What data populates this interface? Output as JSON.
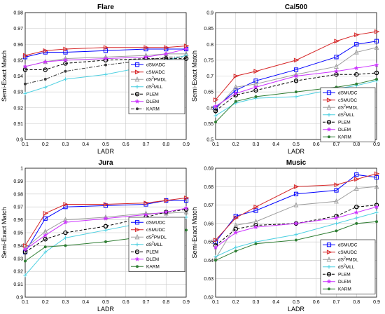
{
  "chart_data": [
    {
      "type": "line",
      "title": "Flare",
      "xlabel": "LADR",
      "ylabel": "Semi-Exact Match",
      "xlim": [
        0.1,
        0.9
      ],
      "ylim": [
        0.9,
        0.98
      ],
      "xticks": [
        "0.1",
        "0.2",
        "0.3",
        "0.4",
        "0.5",
        "0.6",
        "0.7",
        "0.8",
        "0.9"
      ],
      "yticks": [
        "0.9",
        "0.91",
        "0.92",
        "0.93",
        "0.94",
        "0.95",
        "0.96",
        "0.97",
        "0.98"
      ],
      "grid": true,
      "legend": "center-right",
      "x": [
        0.1,
        0.2,
        0.3,
        0.5,
        0.7,
        0.8,
        0.9
      ],
      "series": [
        {
          "name": "dSMADC",
          "color": "#0000ff",
          "marker": "square",
          "dash": "solid",
          "values": [
            0.952,
            0.955,
            0.955,
            0.956,
            0.957,
            0.957,
            0.957
          ]
        },
        {
          "name": "cSMADC",
          "color": "#d62728",
          "marker": "triangle-right",
          "dash": "solid",
          "values": [
            0.953,
            0.956,
            0.957,
            0.958,
            0.958,
            0.958,
            0.959
          ]
        },
        {
          "name": "dS²PMDL",
          "color": "#9e9e9e",
          "marker": "triangle-up",
          "dash": "solid",
          "values": [
            0.946,
            0.949,
            0.951,
            0.952,
            0.953,
            0.954,
            0.954
          ]
        },
        {
          "name": "dS²MLL",
          "color": "#4dd0e1",
          "marker": "plus",
          "dash": "solid",
          "values": [
            0.929,
            0.933,
            0.938,
            0.941,
            0.946,
            0.95,
            0.953
          ]
        },
        {
          "name": "PLEM",
          "color": "#000000",
          "marker": "circle",
          "dash": "dashed",
          "values": [
            0.944,
            0.944,
            0.948,
            0.95,
            0.951,
            0.951,
            0.951
          ]
        },
        {
          "name": "DLEM",
          "color": "#cc33ff",
          "marker": "star",
          "dash": "solid",
          "values": [
            0.946,
            0.949,
            0.95,
            0.951,
            0.952,
            0.954,
            0.957
          ]
        },
        {
          "name": "KARM",
          "color": "#3a3a3a",
          "marker": "dot",
          "dash": "dashdot",
          "values": [
            0.935,
            0.938,
            0.943,
            0.947,
            0.95,
            0.952,
            0.952
          ]
        }
      ]
    },
    {
      "type": "line",
      "title": "Cal500",
      "xlabel": "LADR",
      "ylabel": "Semi-Exact Match",
      "xlim": [
        0.1,
        0.9
      ],
      "ylim": [
        0.5,
        0.9
      ],
      "xticks": [
        "0.1",
        "0.2",
        "0.3",
        "0.4",
        "0.5",
        "0.6",
        "0.7",
        "0.8",
        "0.9"
      ],
      "yticks": [
        "0.5",
        "0.55",
        "0.6",
        "0.65",
        "0.7",
        "0.75",
        "0.8",
        "0.85",
        "0.9"
      ],
      "grid": true,
      "legend": "bottom-right",
      "x": [
        0.1,
        0.2,
        0.3,
        0.5,
        0.7,
        0.8,
        0.9
      ],
      "series": [
        {
          "name": "dSMUDC",
          "color": "#0000ff",
          "marker": "square",
          "dash": "solid",
          "values": [
            0.6,
            0.655,
            0.685,
            0.72,
            0.76,
            0.8,
            0.81
          ]
        },
        {
          "name": "cSMUDC",
          "color": "#d62728",
          "marker": "triangle-right",
          "dash": "solid",
          "values": [
            0.625,
            0.7,
            0.715,
            0.75,
            0.81,
            0.83,
            0.84
          ]
        },
        {
          "name": "dS²PMDL",
          "color": "#9e9e9e",
          "marker": "triangle-up",
          "dash": "solid",
          "values": [
            0.595,
            0.665,
            0.675,
            0.705,
            0.73,
            0.775,
            0.79
          ]
        },
        {
          "name": "dS²MLL",
          "color": "#4dd0e1",
          "marker": "plus",
          "dash": "solid",
          "values": [
            0.575,
            0.615,
            0.63,
            0.635,
            0.66,
            0.67,
            0.685
          ]
        },
        {
          "name": "PLEM",
          "color": "#000000",
          "marker": "circle",
          "dash": "dashed",
          "values": [
            0.59,
            0.64,
            0.655,
            0.685,
            0.705,
            0.705,
            0.71
          ]
        },
        {
          "name": "DLEM",
          "color": "#cc33ff",
          "marker": "star",
          "dash": "solid",
          "values": [
            0.605,
            0.645,
            0.665,
            0.7,
            0.715,
            0.725,
            0.735
          ]
        },
        {
          "name": "KARM",
          "color": "#2e7d32",
          "marker": "dot",
          "dash": "solid",
          "values": [
            0.555,
            0.62,
            0.635,
            0.65,
            0.665,
            0.675,
            0.69
          ]
        }
      ]
    },
    {
      "type": "line",
      "title": "Jura",
      "xlabel": "LADR",
      "ylabel": "Semi-Exact Match",
      "xlim": [
        0.1,
        0.9
      ],
      "ylim": [
        0.9,
        1
      ],
      "xticks": [
        "0.1",
        "0.2",
        "0.3",
        "0.4",
        "0.5",
        "0.6",
        "0.7",
        "0.8",
        "0.9"
      ],
      "yticks": [
        "0.9",
        "0.91",
        "0.92",
        "0.93",
        "0.94",
        "0.95",
        "0.96",
        "0.97",
        "0.98",
        "0.99",
        "1"
      ],
      "grid": true,
      "legend": "right",
      "x": [
        0.1,
        0.2,
        0.3,
        0.5,
        0.7,
        0.8,
        0.9
      ],
      "series": [
        {
          "name": "dSMUDC",
          "color": "#0000ff",
          "marker": "square",
          "dash": "solid",
          "values": [
            0.935,
            0.961,
            0.97,
            0.971,
            0.972,
            0.975,
            0.975
          ]
        },
        {
          "name": "cSMUDC",
          "color": "#d62728",
          "marker": "triangle-right",
          "dash": "solid",
          "values": [
            0.94,
            0.965,
            0.972,
            0.972,
            0.973,
            0.975,
            0.977
          ]
        },
        {
          "name": "dS²PMDL",
          "color": "#9e9e9e",
          "marker": "triangle-up",
          "dash": "solid",
          "values": [
            0.938,
            0.951,
            0.96,
            0.962,
            0.965,
            0.965,
            0.966
          ]
        },
        {
          "name": "dS²MLL",
          "color": "#4dd0e1",
          "marker": "plus",
          "dash": "solid",
          "values": [
            0.917,
            0.935,
            0.946,
            0.952,
            0.958,
            0.961,
            0.962
          ]
        },
        {
          "name": "PLEM",
          "color": "#000000",
          "marker": "circle",
          "dash": "dashed",
          "values": [
            0.935,
            0.945,
            0.95,
            0.955,
            0.962,
            0.966,
            0.968
          ]
        },
        {
          "name": "DLEM",
          "color": "#cc33ff",
          "marker": "star",
          "dash": "solid",
          "values": [
            0.937,
            0.948,
            0.958,
            0.961,
            0.964,
            0.966,
            0.969
          ]
        },
        {
          "name": "KARM",
          "color": "#2e7d32",
          "marker": "dot",
          "dash": "solid",
          "values": [
            0.928,
            0.939,
            0.94,
            0.943,
            0.947,
            0.95,
            0.952
          ]
        }
      ]
    },
    {
      "type": "line",
      "title": "Music",
      "xlabel": "LADR",
      "ylabel": "Semi-Exact Match",
      "xlim": [
        0.1,
        0.9
      ],
      "ylim": [
        0.62,
        0.69
      ],
      "xticks": [
        "0.1",
        "0.2",
        "0.3",
        "0.4",
        "0.5",
        "0.6",
        "0.7",
        "0.8",
        "0.9"
      ],
      "yticks": [
        "0.62",
        "0.63",
        "0.64",
        "0.65",
        "0.66",
        "0.67",
        "0.68",
        "0.69"
      ],
      "grid": true,
      "legend": "bottom-right",
      "x": [
        0.1,
        0.2,
        0.3,
        0.5,
        0.7,
        0.8,
        0.9
      ],
      "series": [
        {
          "name": "dSMUDC",
          "color": "#0000ff",
          "marker": "square",
          "dash": "solid",
          "values": [
            0.65,
            0.664,
            0.667,
            0.676,
            0.678,
            0.6865,
            0.685
          ]
        },
        {
          "name": "cSMUDC",
          "color": "#d62728",
          "marker": "triangle-right",
          "dash": "solid",
          "values": [
            0.651,
            0.663,
            0.669,
            0.68,
            0.681,
            0.684,
            0.687
          ]
        },
        {
          "name": "dS²PMDL",
          "color": "#9e9e9e",
          "marker": "triangle-up",
          "dash": "solid",
          "values": [
            0.641,
            0.659,
            0.661,
            0.67,
            0.672,
            0.679,
            0.68
          ]
        },
        {
          "name": "dS²MLL",
          "color": "#4dd0e1",
          "marker": "plus",
          "dash": "solid",
          "values": [
            0.642,
            0.647,
            0.65,
            0.654,
            0.66,
            0.663,
            0.666
          ]
        },
        {
          "name": "PLEM",
          "color": "#000000",
          "marker": "circle",
          "dash": "dashed",
          "values": [
            0.648,
            0.657,
            0.659,
            0.66,
            0.664,
            0.669,
            0.67
          ]
        },
        {
          "name": "DLEM",
          "color": "#cc33ff",
          "marker": "star",
          "dash": "solid",
          "values": [
            0.647,
            0.655,
            0.658,
            0.66,
            0.663,
            0.666,
            0.669
          ]
        },
        {
          "name": "KARM",
          "color": "#2e7d32",
          "marker": "dot",
          "dash": "solid",
          "values": [
            0.64,
            0.645,
            0.649,
            0.651,
            0.656,
            0.66,
            0.661
          ]
        }
      ]
    }
  ]
}
